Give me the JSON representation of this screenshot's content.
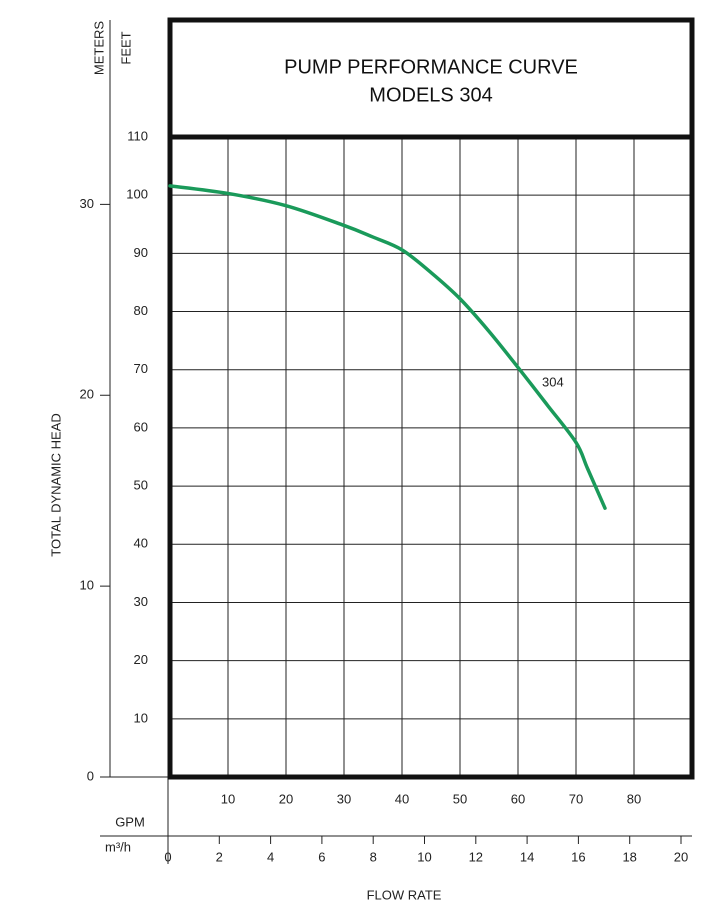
{
  "chart_data": {
    "type": "line",
    "title": "PUMP PERFORMANCE CURVE",
    "subtitle": "MODELS 304",
    "x_label": "FLOW RATE",
    "y_label": "TOTAL DYNAMIC HEAD",
    "y_unit": "FEET",
    "y2_unit": "METERS",
    "x_unit": "GPM",
    "x2_unit": "m³/h",
    "x": [
      0,
      10,
      20,
      30,
      35,
      40,
      45,
      50,
      55,
      60,
      65,
      70,
      72,
      75
    ],
    "series": [
      {
        "name": "304",
        "color": "#1a9a5a",
        "values": [
          101.6,
          100.3,
          98.2,
          94.8,
          92.8,
          90.6,
          86.7,
          82.2,
          76.6,
          70.4,
          64.0,
          57.5,
          53.0,
          46.2
        ]
      }
    ],
    "xlim": [
      0,
      90
    ],
    "xticks": [
      10,
      20,
      30,
      40,
      50,
      60,
      70,
      80
    ],
    "x2lim": [
      0,
      20
    ],
    "x2ticks": [
      0,
      2,
      4,
      6,
      8,
      10,
      12,
      14,
      16,
      18,
      20
    ],
    "ylim": [
      0,
      110
    ],
    "yticks": [
      10,
      20,
      30,
      40,
      50,
      60,
      70,
      80,
      90,
      100,
      110
    ],
    "y2lim": [
      0,
      33.53
    ],
    "y2ticks": [
      0,
      10,
      20,
      30
    ],
    "grid": true
  }
}
